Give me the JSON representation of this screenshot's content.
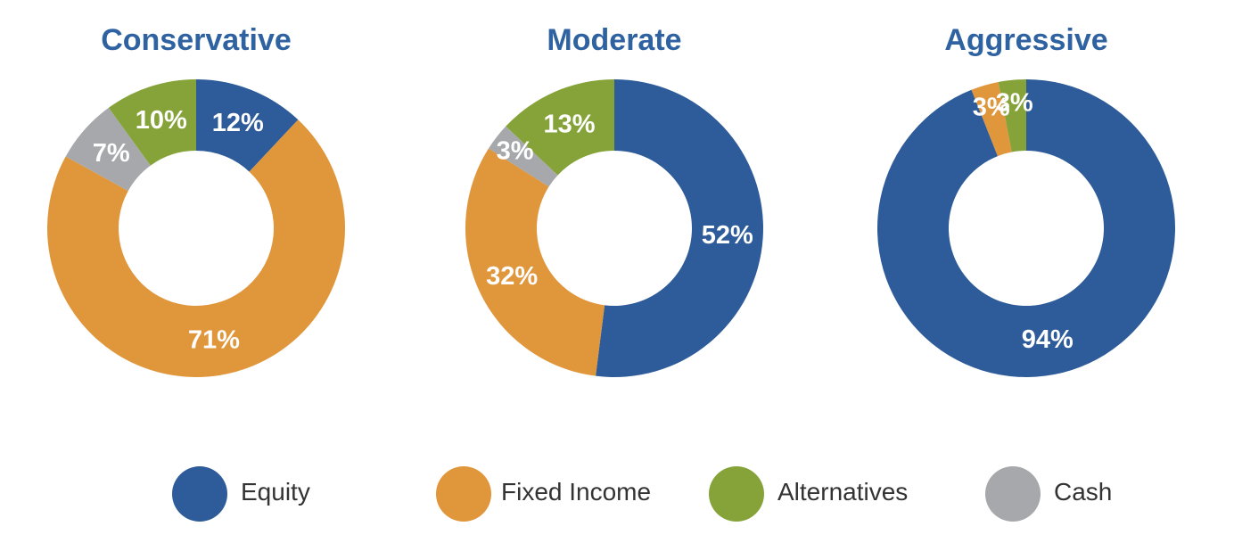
{
  "colors": {
    "Equity": "#2e5b99",
    "Fixed Income": "#e0963b",
    "Alternatives": "#86a33a",
    "Cash": "#a7a8ab"
  },
  "legend": {
    "entries": [
      "Equity",
      "Fixed Income",
      "Alternatives",
      "Cash"
    ],
    "placement": "bottom"
  },
  "chart_data": [
    {
      "type": "pie",
      "title": "Conservative",
      "labels": [
        "Equity",
        "Fixed Income",
        "Cash",
        "Alternatives"
      ],
      "values": [
        12,
        71,
        7,
        10
      ],
      "value_labels": [
        "12%",
        "71%",
        "7%",
        "10%"
      ]
    },
    {
      "type": "pie",
      "title": "Moderate",
      "labels": [
        "Equity",
        "Fixed Income",
        "Cash",
        "Alternatives"
      ],
      "values": [
        52,
        32,
        3,
        13
      ],
      "value_labels": [
        "52%",
        "32%",
        "3%",
        "13%"
      ]
    },
    {
      "type": "pie",
      "title": "Aggressive",
      "labels": [
        "Equity",
        "Fixed Income",
        "Alternatives"
      ],
      "values": [
        94,
        3,
        3
      ],
      "value_labels": [
        "94%",
        "3%",
        "3%"
      ]
    }
  ]
}
